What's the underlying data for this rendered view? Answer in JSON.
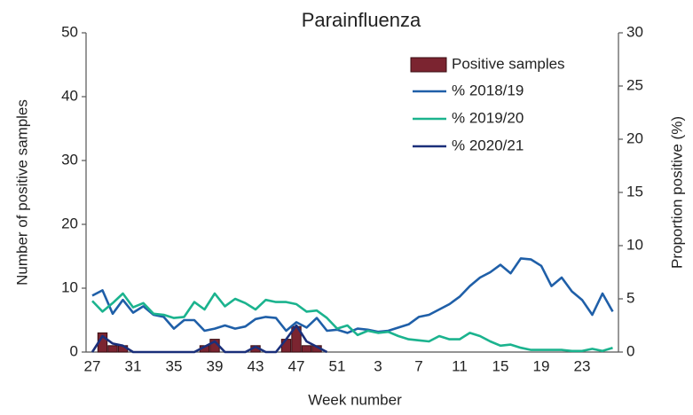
{
  "chart_data": {
    "type": "bar",
    "title": "Parainfluenza",
    "x_label": "Week number",
    "y_label": "Number of positive samples",
    "y2_label": "Proportion positive (%)",
    "categories": [
      "27",
      null,
      null,
      null,
      "31",
      null,
      null,
      null,
      "35",
      null,
      null,
      null,
      "39",
      null,
      null,
      null,
      "43",
      null,
      null,
      null,
      "47",
      null,
      null,
      null,
      "51",
      null,
      null,
      null,
      "3",
      null,
      null,
      null,
      "7",
      null,
      null,
      null,
      "11",
      null,
      null,
      null,
      "15",
      null,
      null,
      null,
      "19",
      null,
      null,
      null,
      "23",
      null,
      null,
      null
    ],
    "ylim": [
      0,
      50
    ],
    "yticks": [
      0,
      10,
      20,
      30,
      40,
      50
    ],
    "y2lim": [
      0,
      30
    ],
    "y2ticks": [
      0,
      5,
      10,
      15,
      20,
      25,
      30
    ],
    "series": [
      {
        "name": "Positive samples",
        "type": "bar",
        "color": "#7b2430",
        "values": [
          0,
          3,
          1,
          1,
          0,
          0,
          0,
          0,
          0,
          0,
          0,
          1,
          2,
          0,
          0,
          0,
          1,
          0,
          0,
          2,
          4,
          1,
          1,
          0,
          null,
          null,
          null,
          null,
          null,
          null,
          null,
          null,
          null,
          null,
          null,
          null,
          null,
          null,
          null,
          null,
          null,
          null,
          null,
          null,
          null,
          null,
          null,
          null,
          null,
          null,
          null,
          null
        ]
      },
      {
        "name": "% 2018/19",
        "type": "line",
        "axis": "y2",
        "color": "#1f5fa8",
        "values": [
          5.3,
          5.8,
          3.6,
          4.9,
          3.7,
          4.3,
          3.5,
          3.3,
          2.2,
          3.0,
          3.0,
          2.0,
          2.2,
          2.5,
          2.2,
          2.4,
          3.1,
          3.3,
          3.2,
          2.0,
          2.8,
          2.3,
          3.2,
          2.0,
          2.1,
          1.8,
          2.2,
          2.1,
          1.9,
          2.0,
          2.3,
          2.6,
          3.3,
          3.5,
          4.0,
          4.5,
          5.2,
          6.2,
          7.0,
          7.5,
          8.2,
          7.4,
          8.8,
          8.7,
          8.1,
          6.2,
          7.0,
          5.7,
          4.9,
          3.5,
          5.5,
          3.8
        ]
      },
      {
        "name": "% 2019/20",
        "type": "line",
        "axis": "y2",
        "color": "#1bb38e",
        "values": [
          4.8,
          3.8,
          4.6,
          5.5,
          4.2,
          4.6,
          3.6,
          3.5,
          3.2,
          3.3,
          4.7,
          4.0,
          5.5,
          4.3,
          5.0,
          4.6,
          4.0,
          4.9,
          4.7,
          4.7,
          4.5,
          3.8,
          3.9,
          3.2,
          2.2,
          2.5,
          1.6,
          2.0,
          1.8,
          1.9,
          1.5,
          1.2,
          1.1,
          1.0,
          1.5,
          1.2,
          1.2,
          1.8,
          1.5,
          1.0,
          0.6,
          0.7,
          0.4,
          0.2,
          0.2,
          0.2,
          0.2,
          0.1,
          0.1,
          0.3,
          0.1,
          0.4
        ]
      },
      {
        "name": "% 2020/21",
        "type": "line",
        "axis": "y2",
        "color": "#1a2f7a",
        "values": [
          0,
          1.5,
          0.8,
          0.6,
          0,
          0,
          0,
          0,
          0,
          0,
          0,
          0.5,
          1,
          0,
          0,
          0,
          0.5,
          0,
          0,
          1.2,
          2.5,
          1,
          0.5,
          0,
          null,
          null,
          null,
          null,
          null,
          null,
          null,
          null,
          null,
          null,
          null,
          null,
          null,
          null,
          null,
          null,
          null,
          null,
          null,
          null,
          null,
          null,
          null,
          null,
          null,
          null,
          null,
          null
        ]
      }
    ]
  }
}
